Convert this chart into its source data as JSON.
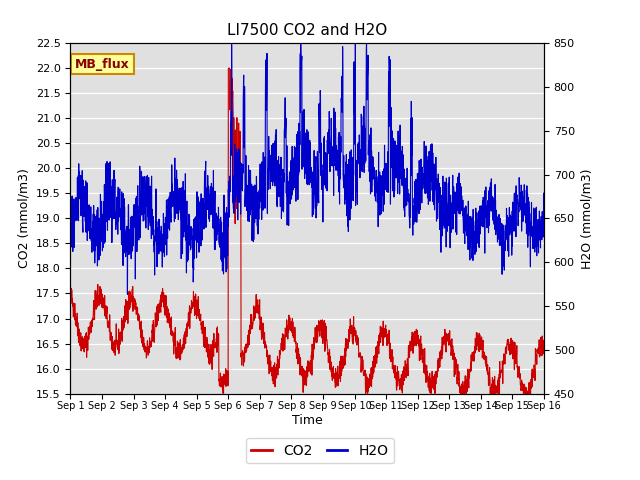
{
  "title": "LI7500 CO2 and H2O",
  "xlabel": "Time",
  "ylabel_left": "CO2 (mmol/m3)",
  "ylabel_right": "H2O (mmol/m3)",
  "ylim_left": [
    15.5,
    22.5
  ],
  "ylim_right": [
    450,
    850
  ],
  "yticks_left": [
    15.5,
    16.0,
    16.5,
    17.0,
    17.5,
    18.0,
    18.5,
    19.0,
    19.5,
    20.0,
    20.5,
    21.0,
    21.5,
    22.0,
    22.5
  ],
  "yticks_right": [
    450,
    500,
    550,
    600,
    650,
    700,
    750,
    800,
    850
  ],
  "co2_color": "#cc0000",
  "h2o_color": "#0000cc",
  "bg_color": "#ffffff",
  "plot_bg_color": "#e0e0e0",
  "legend_label_co2": "CO2",
  "legend_label_h2o": "H2O",
  "annotation_text": "MB_flux",
  "annotation_bg": "#ffff99",
  "annotation_border": "#cc8800",
  "title_fontsize": 11,
  "axis_label_fontsize": 9,
  "tick_fontsize": 8,
  "n_days": 15,
  "seed": 42
}
